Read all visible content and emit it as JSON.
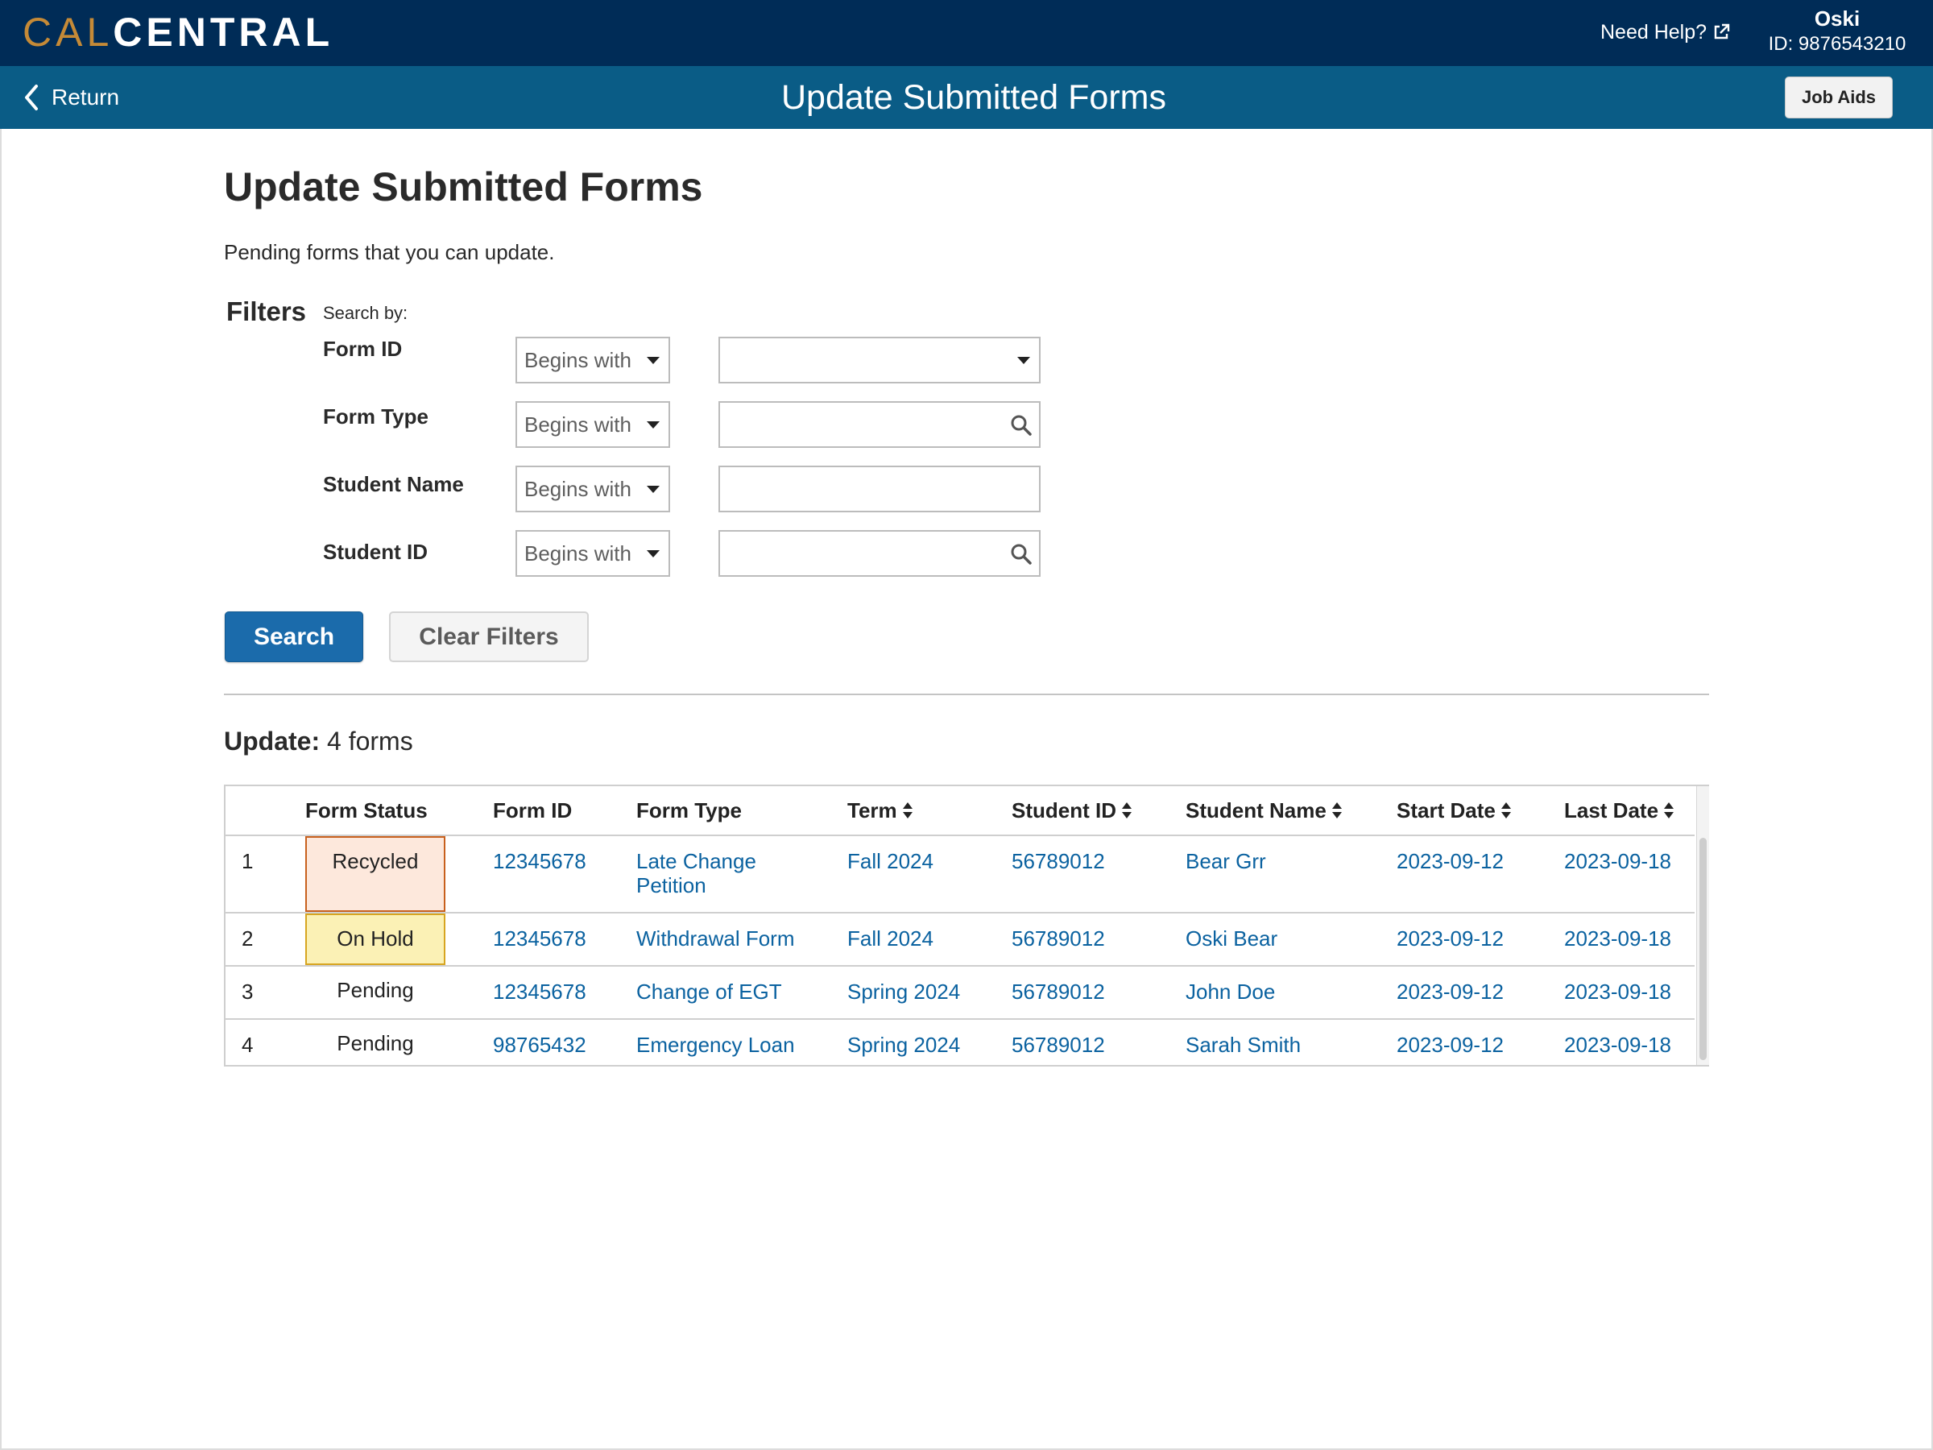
{
  "header": {
    "logo_left": "CAL",
    "logo_right": "CENTRAL",
    "help_label": "Need Help?",
    "user_name": "Oski",
    "user_id": "ID: 9876543210"
  },
  "subheader": {
    "return_label": "Return",
    "title": "Update Submitted Forms",
    "job_aids_label": "Job Aids"
  },
  "page": {
    "title": "Update Submitted Forms",
    "description": "Pending forms that you can update."
  },
  "filters": {
    "title": "Filters",
    "search_by": "Search by:",
    "rows": [
      {
        "label": "Form ID",
        "operator": "Begins with",
        "value": "",
        "value_control": "dropdown"
      },
      {
        "label": "Form Type",
        "operator": "Begins with",
        "value": "",
        "value_control": "lookup"
      },
      {
        "label": "Student Name",
        "operator": "Begins with",
        "value": "",
        "value_control": "text"
      },
      {
        "label": "Student ID",
        "operator": "Begins with",
        "value": "",
        "value_control": "lookup"
      }
    ],
    "search_label": "Search",
    "clear_label": "Clear Filters"
  },
  "results": {
    "prefix": "Update:",
    "count_text": "4 forms",
    "columns": [
      {
        "label": "Form Status",
        "sortable": false
      },
      {
        "label": "Form ID",
        "sortable": false
      },
      {
        "label": "Form Type",
        "sortable": false
      },
      {
        "label": "Term",
        "sortable": true
      },
      {
        "label": "Student ID",
        "sortable": true
      },
      {
        "label": "Student Name",
        "sortable": true
      },
      {
        "label": "Start Date",
        "sortable": true
      },
      {
        "label": "Last Date",
        "sortable": true
      }
    ],
    "rows": [
      {
        "num": "1",
        "status": "Recycled",
        "status_style": "recycled",
        "form_id": "12345678",
        "form_type_line1": "Late Change",
        "form_type_line2": "Petition",
        "term": "Fall 2024",
        "student_id": "56789012",
        "student_name": "Bear Grr",
        "start_date": "2023-09-12",
        "last_date": "2023-09-18"
      },
      {
        "num": "2",
        "status": "On Hold",
        "status_style": "onhold",
        "form_id": "12345678",
        "form_type_line1": "Withdrawal Form",
        "form_type_line2": "",
        "term": "Fall 2024",
        "student_id": "56789012",
        "student_name": "Oski Bear",
        "start_date": "2023-09-12",
        "last_date": "2023-09-18"
      },
      {
        "num": "3",
        "status": "Pending",
        "status_style": "plain",
        "form_id": "12345678",
        "form_type_line1": "Change of EGT",
        "form_type_line2": "",
        "term": "Spring 2024",
        "student_id": "56789012",
        "student_name": "John Doe",
        "start_date": "2023-09-12",
        "last_date": "2023-09-18"
      },
      {
        "num": "4",
        "status": "Pending",
        "status_style": "plain",
        "form_id": "98765432",
        "form_type_line1": "Emergency Loan",
        "form_type_line2": "",
        "term": "Spring 2024",
        "student_id": "56789012",
        "student_name": "Sarah Smith",
        "start_date": "2023-09-12",
        "last_date": "2023-09-18"
      }
    ]
  },
  "colors": {
    "topbar": "#002c57",
    "subbar": "#0a5c86",
    "logo_accent": "#c58a37",
    "link": "#0b62a0",
    "primary_button": "#1b6bab",
    "recycled_fill": "#fde8dc",
    "recycled_border": "#c8601d",
    "onhold_fill": "#fbf1b5",
    "onhold_border": "#d7a520"
  }
}
